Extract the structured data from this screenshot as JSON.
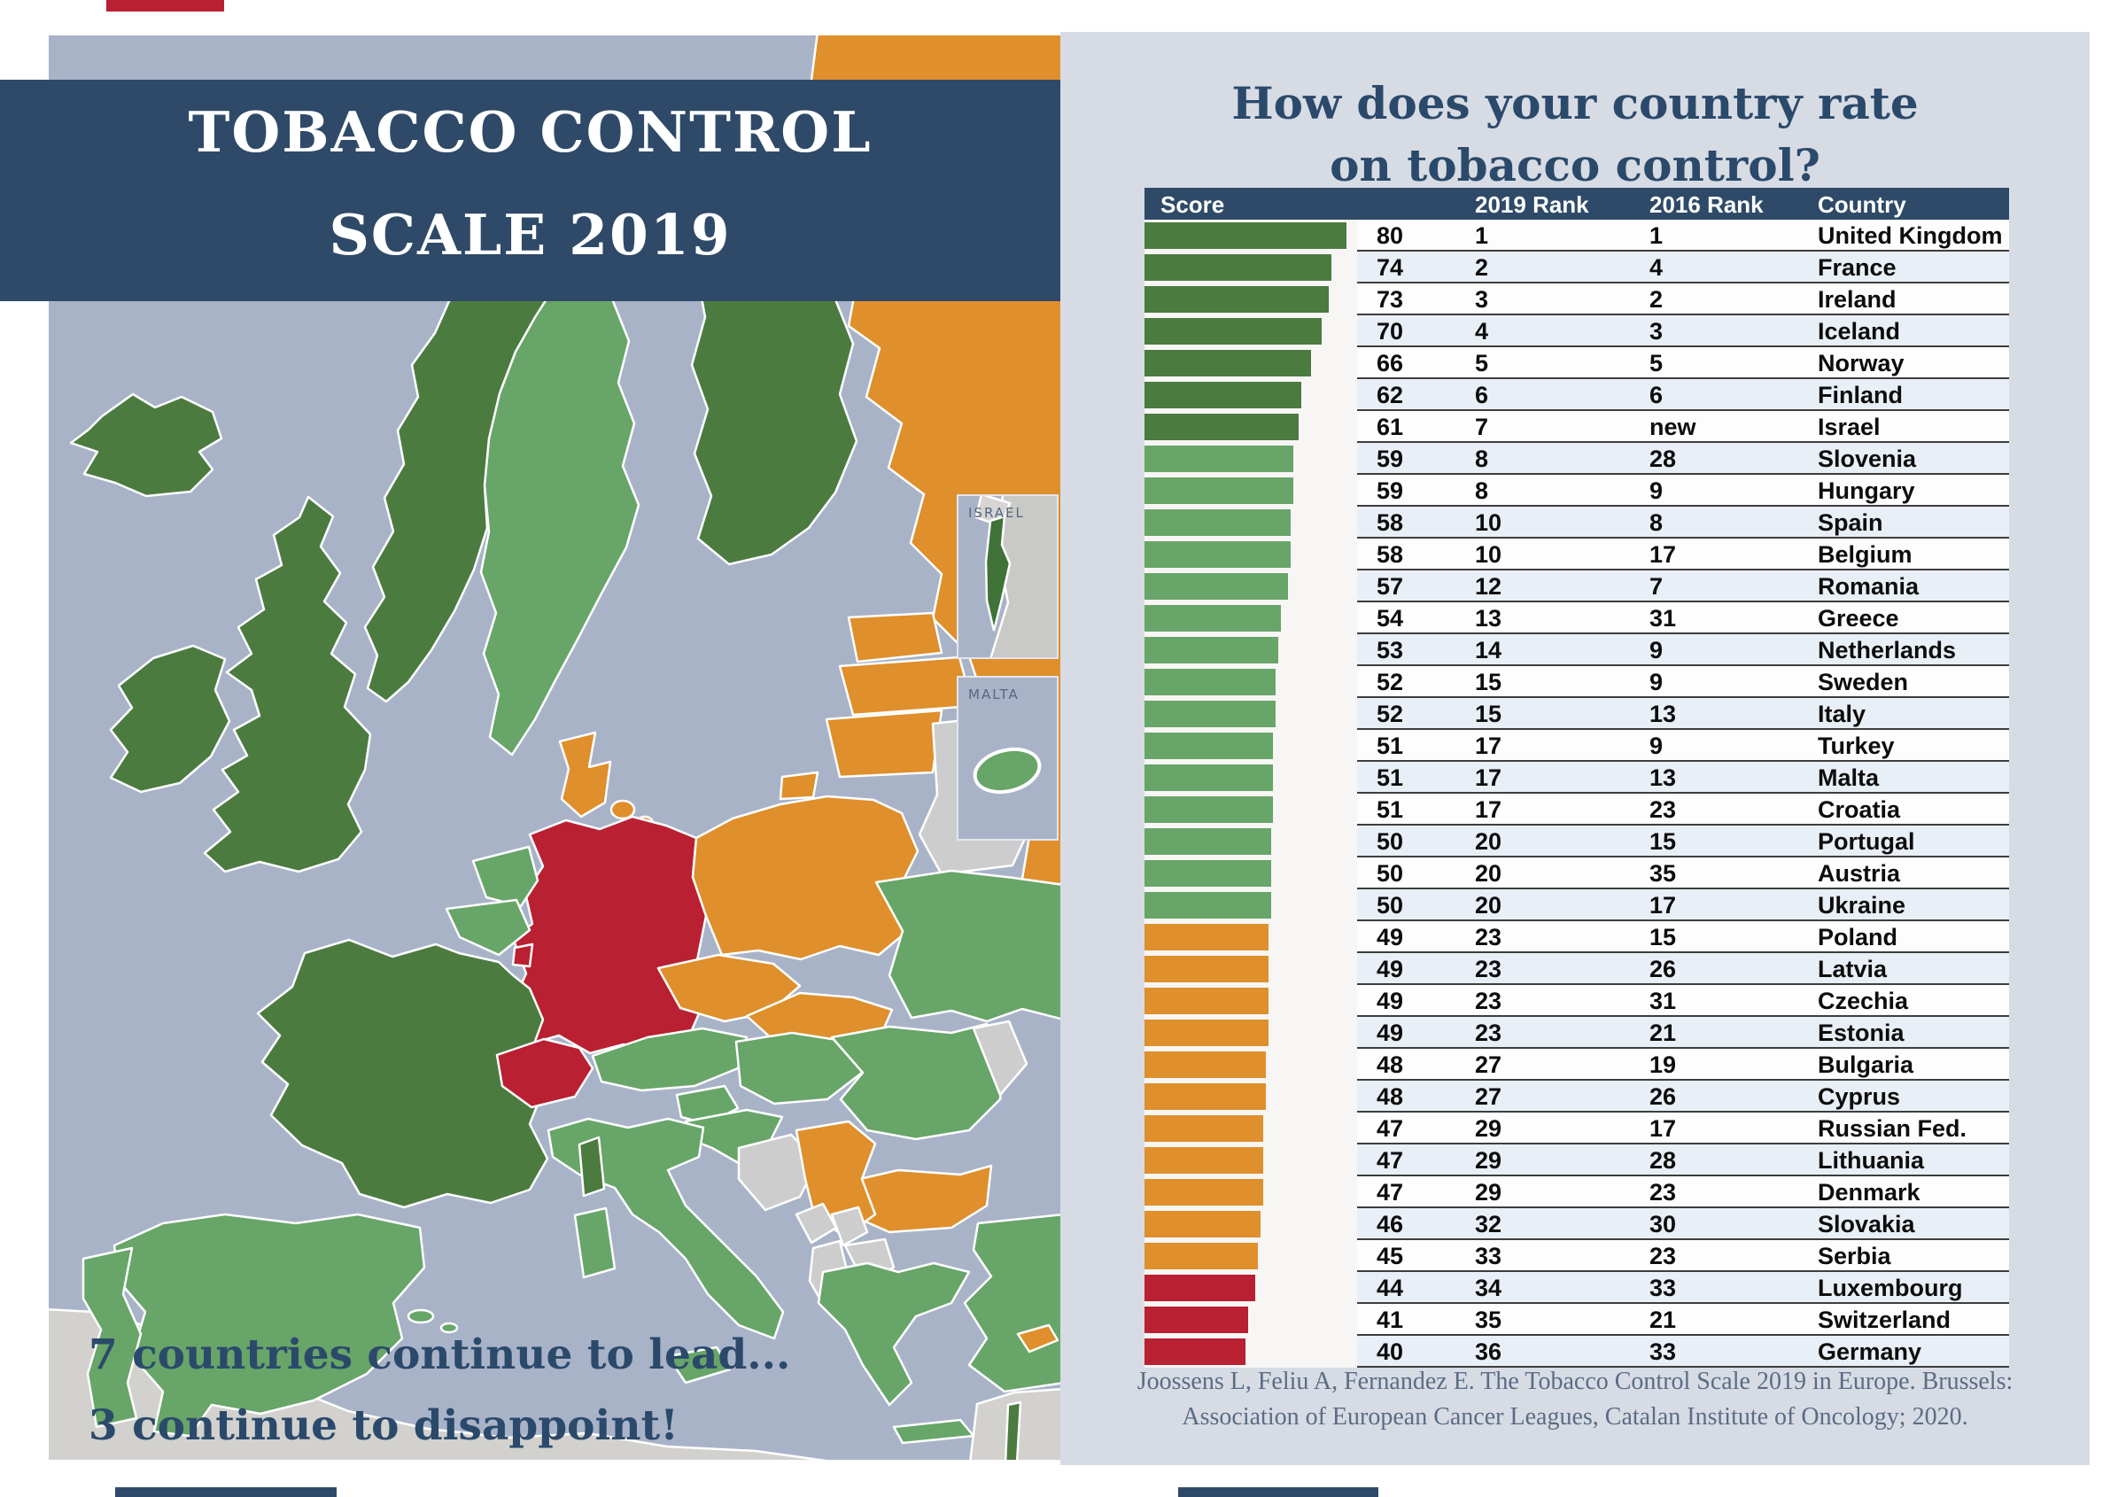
{
  "colors": {
    "navy": "#2e4a68",
    "navy_text": "#2b4a6b",
    "sea": "#a9b3c8",
    "dark_green": "#4c7b40",
    "green": "#68a568",
    "orange": "#df8f2b",
    "red": "#b92031",
    "unscored": "#cdcdcd",
    "farland": "#d2d1ce"
  },
  "page": {
    "title_line1": "TOBACCO CONTROL",
    "title_line2": "SCALE 2019",
    "lead_line1": "7 countries continue to lead...",
    "lead_line2": "3 continue to disappoint!",
    "right_title_line1": "How does your country rate",
    "right_title_line2": "on tobacco control?",
    "citation_line1": "Joossens L, Feliu A, Fernandez E. The Tobacco Control Scale 2019 in Europe. Brussels:",
    "citation_line2": "Association of European Cancer Leagues, Catalan Institute of Oncology; 2020."
  },
  "map": {
    "inset_israel_label": "ISRAEL",
    "inset_malta_label": "MALTA",
    "tiers": {
      "dark_green": [
        "United Kingdom",
        "Ireland",
        "Iceland",
        "Norway",
        "France",
        "Finland",
        "Israel"
      ],
      "green": [
        "Sweden",
        "Spain",
        "Portugal",
        "Netherlands",
        "Belgium",
        "Italy",
        "Austria",
        "Hungary",
        "Slovenia",
        "Croatia",
        "Romania",
        "Ukraine",
        "Greece",
        "Turkey",
        "Malta"
      ],
      "orange": [
        "Denmark",
        "Poland",
        "Czechia",
        "Slovakia",
        "Estonia",
        "Latvia",
        "Lithuania",
        "Russian Fed.",
        "Serbia",
        "Bulgaria",
        "Cyprus"
      ],
      "red": [
        "Germany",
        "Switzerland",
        "Luxembourg"
      ],
      "unscored": [
        "Belarus",
        "Moldova",
        "Bosnia",
        "Montenegro",
        "Kosovo",
        "Albania",
        "North Macedonia",
        "North Africa",
        "Middle East"
      ]
    }
  },
  "table": {
    "headers": [
      "Score",
      "2019 Rank",
      "2016 Rank",
      "Country"
    ],
    "rows": [
      {
        "score": 80,
        "rank2019": "1",
        "rank2016": "1",
        "country": "United Kingdom",
        "tier": "dark_green"
      },
      {
        "score": 74,
        "rank2019": "2",
        "rank2016": "4",
        "country": "France",
        "tier": "dark_green"
      },
      {
        "score": 73,
        "rank2019": "3",
        "rank2016": "2",
        "country": "Ireland",
        "tier": "dark_green"
      },
      {
        "score": 70,
        "rank2019": "4",
        "rank2016": "3",
        "country": "Iceland",
        "tier": "dark_green"
      },
      {
        "score": 66,
        "rank2019": "5",
        "rank2016": "5",
        "country": "Norway",
        "tier": "dark_green"
      },
      {
        "score": 62,
        "rank2019": "6",
        "rank2016": "6",
        "country": "Finland",
        "tier": "dark_green"
      },
      {
        "score": 61,
        "rank2019": "7",
        "rank2016": "new",
        "country": "Israel",
        "tier": "dark_green"
      },
      {
        "score": 59,
        "rank2019": "8",
        "rank2016": "28",
        "country": "Slovenia",
        "tier": "green"
      },
      {
        "score": 59,
        "rank2019": "8",
        "rank2016": "9",
        "country": "Hungary",
        "tier": "green"
      },
      {
        "score": 58,
        "rank2019": "10",
        "rank2016": "8",
        "country": "Spain",
        "tier": "green"
      },
      {
        "score": 58,
        "rank2019": "10",
        "rank2016": "17",
        "country": "Belgium",
        "tier": "green"
      },
      {
        "score": 57,
        "rank2019": "12",
        "rank2016": "7",
        "country": "Romania",
        "tier": "green"
      },
      {
        "score": 54,
        "rank2019": "13",
        "rank2016": "31",
        "country": "Greece",
        "tier": "green"
      },
      {
        "score": 53,
        "rank2019": "14",
        "rank2016": "9",
        "country": "Netherlands",
        "tier": "green"
      },
      {
        "score": 52,
        "rank2019": "15",
        "rank2016": "9",
        "country": "Sweden",
        "tier": "green"
      },
      {
        "score": 52,
        "rank2019": "15",
        "rank2016": "13",
        "country": "Italy",
        "tier": "green"
      },
      {
        "score": 51,
        "rank2019": "17",
        "rank2016": "9",
        "country": "Turkey",
        "tier": "green"
      },
      {
        "score": 51,
        "rank2019": "17",
        "rank2016": "13",
        "country": "Malta",
        "tier": "green"
      },
      {
        "score": 51,
        "rank2019": "17",
        "rank2016": "23",
        "country": "Croatia",
        "tier": "green"
      },
      {
        "score": 50,
        "rank2019": "20",
        "rank2016": "15",
        "country": "Portugal",
        "tier": "green"
      },
      {
        "score": 50,
        "rank2019": "20",
        "rank2016": "35",
        "country": "Austria",
        "tier": "green"
      },
      {
        "score": 50,
        "rank2019": "20",
        "rank2016": "17",
        "country": "Ukraine",
        "tier": "green"
      },
      {
        "score": 49,
        "rank2019": "23",
        "rank2016": "15",
        "country": "Poland",
        "tier": "orange"
      },
      {
        "score": 49,
        "rank2019": "23",
        "rank2016": "26",
        "country": "Latvia",
        "tier": "orange"
      },
      {
        "score": 49,
        "rank2019": "23",
        "rank2016": "31",
        "country": "Czechia",
        "tier": "orange"
      },
      {
        "score": 49,
        "rank2019": "23",
        "rank2016": "21",
        "country": "Estonia",
        "tier": "orange"
      },
      {
        "score": 48,
        "rank2019": "27",
        "rank2016": "19",
        "country": "Bulgaria",
        "tier": "orange"
      },
      {
        "score": 48,
        "rank2019": "27",
        "rank2016": "26",
        "country": "Cyprus",
        "tier": "orange"
      },
      {
        "score": 47,
        "rank2019": "29",
        "rank2016": "17",
        "country": "Russian Fed.",
        "tier": "orange"
      },
      {
        "score": 47,
        "rank2019": "29",
        "rank2016": "28",
        "country": "Lithuania",
        "tier": "orange"
      },
      {
        "score": 47,
        "rank2019": "29",
        "rank2016": "23",
        "country": "Denmark",
        "tier": "orange"
      },
      {
        "score": 46,
        "rank2019": "32",
        "rank2016": "30",
        "country": "Slovakia",
        "tier": "orange"
      },
      {
        "score": 45,
        "rank2019": "33",
        "rank2016": "23",
        "country": "Serbia",
        "tier": "orange"
      },
      {
        "score": 44,
        "rank2019": "34",
        "rank2016": "33",
        "country": "Luxembourg",
        "tier": "red"
      },
      {
        "score": 41,
        "rank2019": "35",
        "rank2016": "21",
        "country": "Switzerland",
        "tier": "red"
      },
      {
        "score": 40,
        "rank2019": "36",
        "rank2016": "33",
        "country": "Germany",
        "tier": "red"
      }
    ]
  },
  "chart_data": {
    "type": "bar",
    "orientation": "horizontal",
    "title": "How does your country rate on tobacco control?",
    "columns": [
      "Score",
      "2019 Rank",
      "2016 Rank",
      "Country"
    ],
    "categories": [
      "United Kingdom",
      "France",
      "Ireland",
      "Iceland",
      "Norway",
      "Finland",
      "Israel",
      "Slovenia",
      "Hungary",
      "Spain",
      "Belgium",
      "Romania",
      "Greece",
      "Netherlands",
      "Sweden",
      "Italy",
      "Turkey",
      "Malta",
      "Croatia",
      "Portugal",
      "Austria",
      "Ukraine",
      "Poland",
      "Latvia",
      "Czechia",
      "Estonia",
      "Bulgaria",
      "Cyprus",
      "Russian Fed.",
      "Lithuania",
      "Denmark",
      "Slovakia",
      "Serbia",
      "Luxembourg",
      "Switzerland",
      "Germany"
    ],
    "values": [
      80,
      74,
      73,
      70,
      66,
      62,
      61,
      59,
      59,
      58,
      58,
      57,
      54,
      53,
      52,
      52,
      51,
      51,
      51,
      50,
      50,
      50,
      49,
      49,
      49,
      49,
      48,
      48,
      47,
      47,
      47,
      46,
      45,
      44,
      41,
      40
    ],
    "rank_2019": [
      "1",
      "2",
      "3",
      "4",
      "5",
      "6",
      "7",
      "8",
      "8",
      "10",
      "10",
      "12",
      "13",
      "14",
      "15",
      "15",
      "17",
      "17",
      "17",
      "20",
      "20",
      "20",
      "23",
      "23",
      "23",
      "23",
      "27",
      "27",
      "29",
      "29",
      "29",
      "32",
      "33",
      "34",
      "35",
      "36"
    ],
    "rank_2016": [
      "1",
      "4",
      "2",
      "3",
      "5",
      "6",
      "new",
      "28",
      "9",
      "8",
      "17",
      "7",
      "31",
      "9",
      "9",
      "13",
      "9",
      "13",
      "23",
      "15",
      "35",
      "17",
      "15",
      "26",
      "31",
      "21",
      "19",
      "26",
      "17",
      "28",
      "23",
      "30",
      "23",
      "33",
      "21",
      "33"
    ],
    "bar_color_tiers": [
      "dark_green",
      "dark_green",
      "dark_green",
      "dark_green",
      "dark_green",
      "dark_green",
      "dark_green",
      "green",
      "green",
      "green",
      "green",
      "green",
      "green",
      "green",
      "green",
      "green",
      "green",
      "green",
      "green",
      "green",
      "green",
      "green",
      "orange",
      "orange",
      "orange",
      "orange",
      "orange",
      "orange",
      "orange",
      "orange",
      "orange",
      "orange",
      "orange",
      "red",
      "red",
      "red"
    ],
    "xlim": [
      0,
      80
    ],
    "legend": false,
    "grid": false
  }
}
